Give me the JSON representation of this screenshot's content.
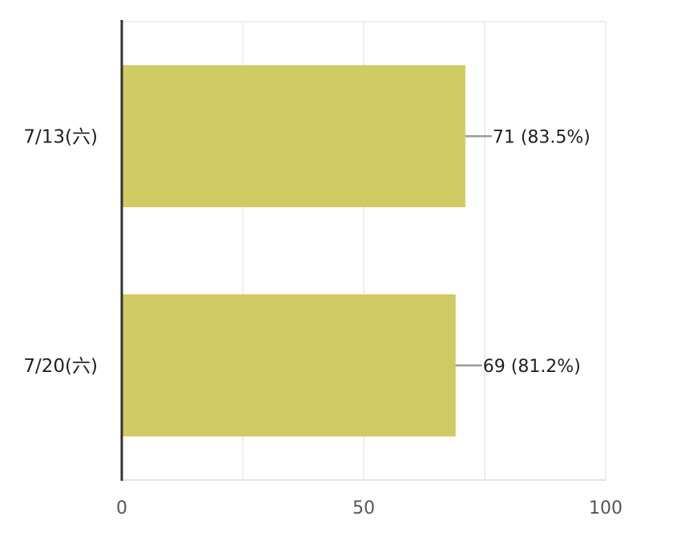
{
  "chart_data": {
    "type": "bar",
    "orientation": "horizontal",
    "categories": [
      "7/13(六)",
      "7/20(六)"
    ],
    "values": [
      71,
      69
    ],
    "data_labels": [
      "71 (83.5%)",
      "69 (81.2%)"
    ],
    "xlim": [
      0,
      100
    ],
    "xticks": [
      0,
      50,
      100
    ],
    "xtick_labels": [
      "0",
      "50",
      "100"
    ],
    "grid": true,
    "legend": "none",
    "bar_color": "#d0ca63",
    "grid_color": "#eeeeee",
    "axis_color": "#333333",
    "leader_color": "#999999"
  }
}
